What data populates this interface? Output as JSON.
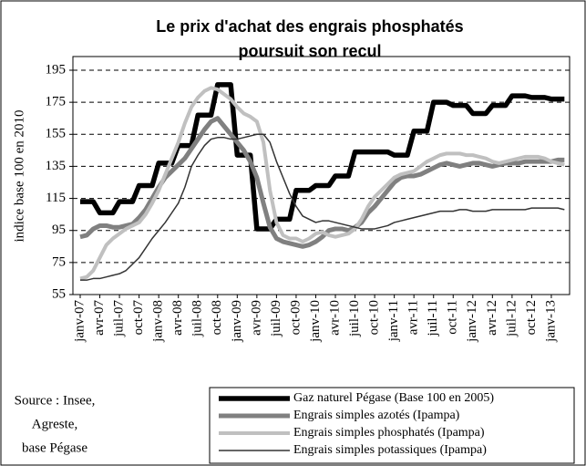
{
  "chart_data": {
    "type": "line",
    "title": [
      "Le prix d'achat des engrais phosphatés",
      "poursuit son recul"
    ],
    "ylabel": "indice base 100 en 2010",
    "source": [
      "Source : Insee,",
      "Agreste,",
      "base Pégase"
    ],
    "categories": [
      "janv-07",
      null,
      null,
      "avr-07",
      null,
      null,
      "juil-07",
      null,
      null,
      "oct-07",
      null,
      null,
      "janv-08",
      null,
      null,
      "avr-08",
      null,
      null,
      "juil-08",
      null,
      null,
      "oct-08",
      null,
      null,
      "janv-09",
      null,
      null,
      "avr-09",
      null,
      null,
      "juil-09",
      null,
      null,
      "oct-09",
      null,
      null,
      "janv-10",
      null,
      null,
      "avr-10",
      null,
      null,
      "juil-10",
      null,
      null,
      "oct-10",
      null,
      null,
      "janv-11",
      null,
      null,
      "avr-11",
      null,
      null,
      "juil-11",
      null,
      null,
      "oct-11",
      null,
      null,
      "janv-12",
      null,
      null,
      "avr-12",
      null,
      null,
      "juil-12",
      null,
      null,
      "oct-12",
      null,
      null,
      "janv-13",
      null,
      null
    ],
    "series": [
      {
        "name": "Gaz naturel Pégase (Base 100 en 2005)",
        "color": "#000000",
        "values": [
          113,
          113,
          113,
          106,
          106,
          106,
          113,
          113,
          113,
          123,
          123,
          123,
          137,
          137,
          137,
          148,
          148,
          148,
          167,
          167,
          167,
          186,
          186,
          186,
          142,
          142,
          142,
          96,
          96,
          96,
          102,
          102,
          102,
          120,
          120,
          120,
          123,
          123,
          123,
          129,
          129,
          129,
          144,
          144,
          144,
          144,
          144,
          144,
          142,
          142,
          142,
          157,
          157,
          157,
          175,
          175,
          175,
          173,
          173,
          173,
          168,
          168,
          168,
          173,
          173,
          173,
          179,
          179,
          179,
          178,
          178,
          178,
          177,
          177,
          177
        ]
      },
      {
        "name": "Engrais simples azotés (Ipampa)",
        "color": "#808080",
        "values": [
          91,
          92,
          96,
          98,
          98,
          97,
          97,
          98,
          99,
          103,
          108,
          115,
          122,
          128,
          132,
          136,
          140,
          146,
          152,
          158,
          163,
          165,
          160,
          155,
          150,
          145,
          138,
          128,
          112,
          97,
          90,
          88,
          87,
          86,
          85,
          86,
          88,
          91,
          95,
          96,
          96,
          95,
          97,
          100,
          106,
          110,
          115,
          120,
          125,
          128,
          129,
          129,
          130,
          132,
          134,
          136,
          137,
          136,
          135,
          136,
          137,
          137,
          136,
          135,
          136,
          137,
          137,
          137,
          138,
          138,
          138,
          138,
          138,
          139,
          139
        ]
      },
      {
        "name": "Engrais simples phosphatés (Ipampa)",
        "color": "#c0c0c0",
        "values": [
          65,
          66,
          70,
          78,
          86,
          90,
          93,
          96,
          98,
          100,
          105,
          112,
          120,
          130,
          140,
          150,
          162,
          172,
          178,
          182,
          184,
          183,
          180,
          177,
          172,
          168,
          166,
          163,
          150,
          120,
          100,
          92,
          90,
          90,
          88,
          90,
          93,
          94,
          92,
          91,
          92,
          93,
          96,
          102,
          110,
          116,
          120,
          124,
          128,
          130,
          131,
          132,
          135,
          138,
          140,
          142,
          143,
          143,
          143,
          142,
          142,
          141,
          140,
          138,
          137,
          138,
          139,
          140,
          141,
          141,
          141,
          140,
          138,
          137,
          136
        ]
      },
      {
        "name": "Engrais simples potassiques (Ipampa)",
        "color": "#333333",
        "values": [
          64,
          64,
          65,
          65,
          66,
          67,
          68,
          70,
          74,
          78,
          84,
          90,
          95,
          100,
          106,
          112,
          122,
          135,
          142,
          148,
          152,
          153,
          153,
          152,
          152,
          153,
          154,
          155,
          155,
          150,
          138,
          128,
          118,
          110,
          104,
          102,
          100,
          101,
          101,
          100,
          99,
          98,
          97,
          96,
          96,
          96,
          97,
          98,
          100,
          101,
          102,
          103,
          104,
          105,
          106,
          107,
          107,
          107,
          108,
          108,
          107,
          107,
          107,
          108,
          108,
          108,
          108,
          108,
          108,
          109,
          109,
          109,
          109,
          109,
          108
        ]
      }
    ],
    "ylim": [
      55,
      195
    ],
    "yticks": [
      55,
      75,
      95,
      115,
      135,
      155,
      175,
      195
    ],
    "grid": true
  }
}
